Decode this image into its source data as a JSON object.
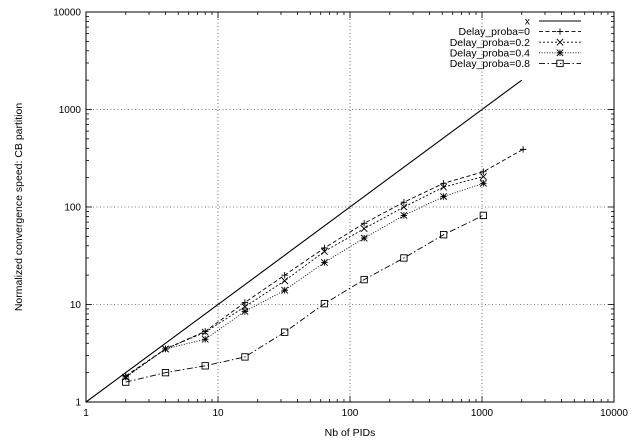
{
  "chart_data": {
    "type": "line",
    "title": "",
    "xlabel": "Nb of PIDs",
    "ylabel": "Normalized convergence speed: CB partition",
    "x_scale": "log",
    "y_scale": "log",
    "xlim": [
      1,
      10000
    ],
    "ylim": [
      1,
      10000
    ],
    "x_ticks": [
      1,
      10,
      100,
      1000,
      10000
    ],
    "y_ticks": [
      1,
      10,
      100,
      1000,
      10000
    ],
    "x_tick_labels": [
      "1",
      "10",
      "100",
      "1000",
      "10000"
    ],
    "y_tick_labels": [
      "1",
      "10",
      "100",
      "1000",
      "10000"
    ],
    "grid": "dotted, major ticks",
    "legend_position": "top-right",
    "series": [
      {
        "name": "x",
        "style": "solid line",
        "marker": "none",
        "x": [
          1,
          2000
        ],
        "y": [
          1,
          2000
        ]
      },
      {
        "name": "Delay_proba=0",
        "style": "dashed",
        "marker": "plus",
        "x": [
          2,
          4,
          8,
          16,
          32,
          64,
          128,
          256,
          512,
          1024,
          2048
        ],
        "y": [
          1.85,
          3.5,
          5.3,
          10.5,
          20,
          38,
          68,
          112,
          175,
          230,
          390
        ]
      },
      {
        "name": "Delay_proba=0.2",
        "style": "dotted",
        "marker": "cross",
        "x": [
          2,
          4,
          8,
          16,
          32,
          64,
          128,
          256,
          512,
          1024
        ],
        "y": [
          1.8,
          3.5,
          5.2,
          9.5,
          17.5,
          35,
          60,
          100,
          160,
          205
        ]
      },
      {
        "name": "Delay_proba=0.4",
        "style": "fine dotted",
        "marker": "star",
        "x": [
          2,
          4,
          8,
          16,
          32,
          64,
          128,
          256,
          512,
          1024
        ],
        "y": [
          1.8,
          3.5,
          4.4,
          8.5,
          14,
          27,
          48,
          82,
          128,
          175
        ]
      },
      {
        "name": "Delay_proba=0.8",
        "style": "dash-dot",
        "marker": "square",
        "x": [
          2,
          4,
          8,
          16,
          32,
          64,
          128,
          256,
          512,
          1024
        ],
        "y": [
          1.6,
          2.0,
          2.35,
          2.9,
          5.2,
          10.2,
          18,
          30,
          52,
          82
        ]
      }
    ]
  }
}
